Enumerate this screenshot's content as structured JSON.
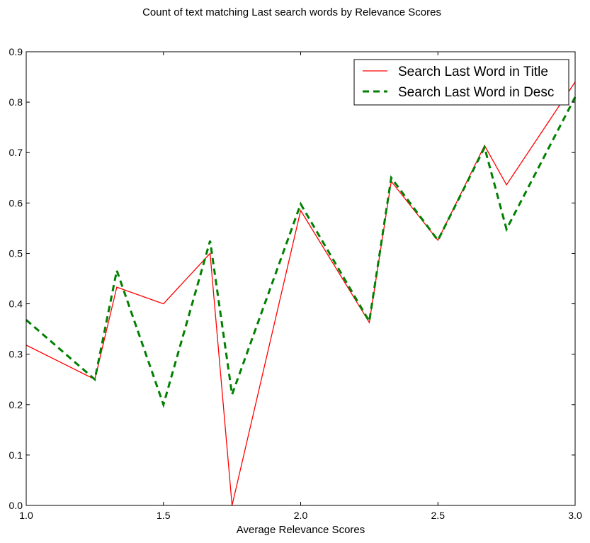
{
  "chart_data": {
    "type": "line",
    "title": "Count of text matching Last search words by Relevance Scores",
    "xlabel": "Average Relevance Scores",
    "ylabel": "",
    "xlim": [
      1.0,
      3.0
    ],
    "ylim": [
      0.0,
      0.9
    ],
    "xticks": [
      "1.0",
      "1.5",
      "2.0",
      "2.5",
      "3.0"
    ],
    "yticks": [
      "0.0",
      "0.1",
      "0.2",
      "0.3",
      "0.4",
      "0.5",
      "0.6",
      "0.7",
      "0.8",
      "0.9"
    ],
    "grid": false,
    "legend_position": "top-right",
    "x": [
      1.0,
      1.25,
      1.33,
      1.5,
      1.67,
      1.75,
      2.0,
      2.25,
      2.33,
      2.5,
      2.67,
      2.75,
      3.0
    ],
    "series": [
      {
        "name": "Search Last Word in Title",
        "color": "#ff0000",
        "style": "solid",
        "values": [
          0.318,
          0.25,
          0.433,
          0.4,
          0.5,
          0.0,
          0.585,
          0.363,
          0.643,
          0.526,
          0.714,
          0.636,
          0.84
        ]
      },
      {
        "name": "Search Last Word in Desc",
        "color": "#008000",
        "style": "dashed",
        "values": [
          0.368,
          0.25,
          0.466,
          0.2,
          0.525,
          0.22,
          0.598,
          0.365,
          0.65,
          0.526,
          0.71,
          0.548,
          0.81
        ]
      }
    ]
  }
}
